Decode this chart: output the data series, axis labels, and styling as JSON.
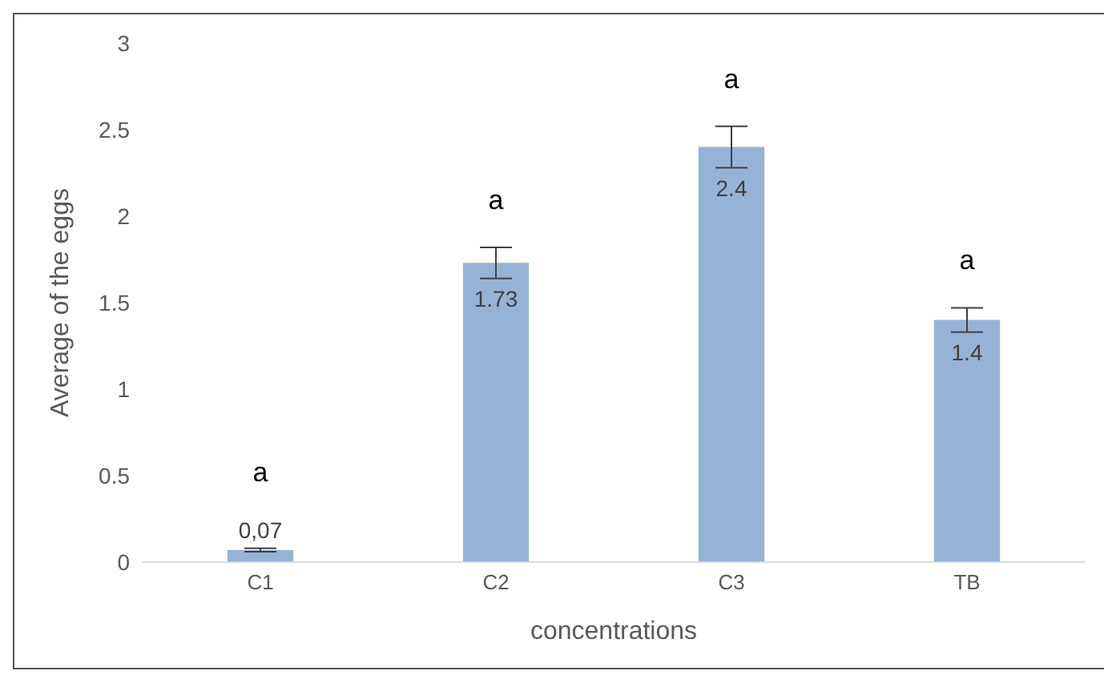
{
  "chart_data": {
    "type": "bar",
    "xlabel": "concentrations",
    "ylabel": "Average of the eggs",
    "categories": [
      "C1",
      "C2",
      "C3",
      "TB"
    ],
    "values": [
      0.07,
      1.73,
      2.4,
      1.4
    ],
    "errors": [
      0.01,
      0.09,
      0.12,
      0.07
    ],
    "value_labels": [
      "0,07",
      "1.73",
      "2.4",
      "1.4"
    ],
    "color": "#95b3d7",
    "ylim": [
      0,
      3
    ],
    "yticks": [
      0,
      0.5,
      1,
      1.5,
      2,
      2.5,
      3
    ],
    "grid": false,
    "legend": false,
    "annotations": [
      "a",
      "a",
      "a",
      "a"
    ]
  }
}
